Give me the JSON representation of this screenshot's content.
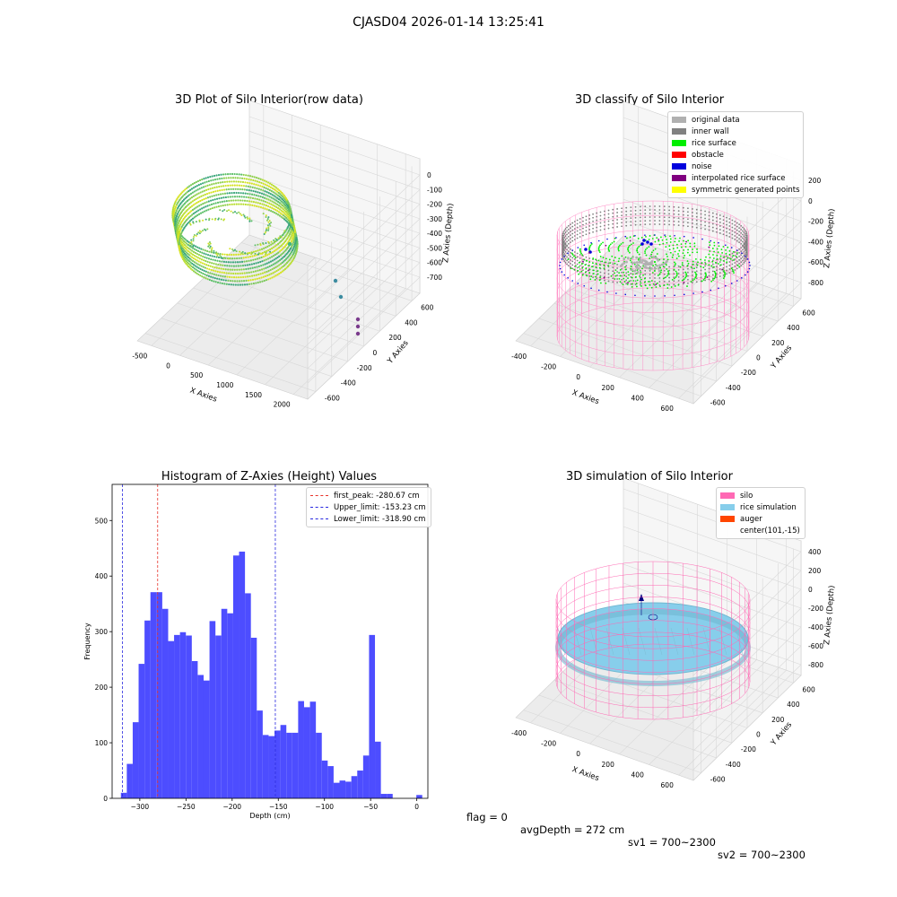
{
  "figure": {
    "suptitle": "CJASD04 2026-01-14 13:25:41",
    "footer": {
      "flag": "flag = 0",
      "avg_depth": "avgDepth = 272 cm",
      "sv1": "sv1 = 700~2300",
      "sv2": "sv2 = 700~2300"
    }
  },
  "chart_data": [
    {
      "type": "scatter",
      "panel": "top-left",
      "projection": "3d",
      "title": "3D Plot of Silo Interior(row data)",
      "xlabel": "X Axies",
      "ylabel": "Y Axies",
      "zlabel": "Z Axies (Depth)",
      "x_ticks": [
        "-500",
        "0",
        "500",
        "1000",
        "1500",
        "2000"
      ],
      "y_ticks": [
        "-600",
        "-400",
        "-200",
        "0",
        "200",
        "400",
        "600"
      ],
      "z_ticks": [
        "0",
        "-100",
        "-200",
        "-300",
        "-400",
        "-500",
        "-600",
        "-700"
      ],
      "colormap": "viridis",
      "outliers": [
        {
          "x": 1450,
          "y": 600,
          "z": -60
        },
        {
          "x": 1700,
          "y": 500,
          "z": -600
        },
        {
          "x": 1750,
          "y": 500,
          "z": -640
        },
        {
          "x": 2000,
          "y": -100,
          "z": -690
        },
        {
          "x": 2050,
          "y": -150,
          "z": -700
        },
        {
          "x": 2050,
          "y": -200,
          "z": -700
        }
      ]
    },
    {
      "type": "scatter",
      "panel": "top-right",
      "projection": "3d",
      "title": "3D classify of Silo Interior",
      "xlabel": "X Axies",
      "ylabel": "Y Axies",
      "zlabel": "Z Axies (Depth)",
      "x_ticks": [
        "-400",
        "-200",
        "0",
        "200",
        "400",
        "600"
      ],
      "y_ticks": [
        "-600",
        "-400",
        "-200",
        "0",
        "200",
        "400",
        "600"
      ],
      "z_ticks": [
        "200",
        "0",
        "-200",
        "-400",
        "-600",
        "-800"
      ],
      "legend": {
        "position": "top-right",
        "entries": [
          {
            "label": "original data",
            "color": "#b0b0b0"
          },
          {
            "label": "inner wall",
            "color": "#808080"
          },
          {
            "label": "rice surface",
            "color": "#00ee00"
          },
          {
            "label": "obstacle",
            "color": "#ff0000"
          },
          {
            "label": "noise",
            "color": "#0000dd"
          },
          {
            "label": "interpolated rice surface",
            "color": "#800080"
          },
          {
            "label": "symmetric generated points",
            "color": "#ffff00"
          }
        ]
      },
      "silo_wireframe_color": "#ff8cc6"
    },
    {
      "type": "bar",
      "panel": "bottom-left",
      "title": "Histogram of Z-Axies (Height) Values",
      "xlabel": "Depth (cm)",
      "ylabel": "Frequency",
      "xlim": [
        -330,
        12
      ],
      "ylim": [
        0,
        565
      ],
      "x_ticks": [
        -300,
        -250,
        -200,
        -150,
        -100,
        -50,
        0
      ],
      "y_ticks": [
        0,
        100,
        200,
        300,
        400,
        500
      ],
      "bar_color": "#4d4dff",
      "bin_edges": [
        -320.5,
        -314.1,
        -307.7,
        -301.3,
        -294.9,
        -288.5,
        -282.1,
        -275.7,
        -269.3,
        -262.9,
        -256.5,
        -250.1,
        -243.7,
        -237.3,
        -230.9,
        -224.5,
        -218.1,
        -211.7,
        -205.3,
        -198.9,
        -192.5,
        -186.1,
        -179.7,
        -173.3,
        -166.9,
        -160.5,
        -154.1,
        -147.7,
        -141.3,
        -134.9,
        -128.5,
        -122.1,
        -115.7,
        -109.3,
        -102.9,
        -96.5,
        -90.1,
        -83.7,
        -77.3,
        -70.9,
        -64.5,
        -58.1,
        -51.7,
        -45.3,
        -38.9,
        -32.5,
        -26.1,
        -19.7,
        -13.3,
        -6.9,
        -0.5,
        5.9
      ],
      "values": [
        10,
        62,
        137,
        242,
        320,
        371,
        371,
        341,
        283,
        294,
        299,
        293,
        247,
        222,
        212,
        319,
        293,
        341,
        333,
        437,
        444,
        369,
        289,
        158,
        114,
        112,
        122,
        132,
        118,
        118,
        175,
        164,
        174,
        118,
        68,
        58,
        28,
        32,
        30,
        40,
        50,
        77,
        294,
        102,
        8,
        8,
        0,
        0,
        0,
        0,
        6
      ],
      "reference_lines": [
        {
          "label": "first_peak: -280.67 cm",
          "x": -280.67,
          "color": "#e8332a"
        },
        {
          "label": "Upper_limit: -153.23 cm",
          "x": -153.23,
          "color": "#2828e0"
        },
        {
          "label": "Lower_limit: -318.90 cm",
          "x": -318.9,
          "color": "#2828e0"
        }
      ],
      "legend": {
        "position": "top-right"
      }
    },
    {
      "type": "scatter",
      "panel": "bottom-right",
      "projection": "3d",
      "title": "3D simulation of Silo Interior",
      "xlabel": "X Axies",
      "ylabel": "Y Axies",
      "zlabel": "Z Axies (Depth)",
      "x_ticks": [
        "-400",
        "-200",
        "0",
        "200",
        "400",
        "600"
      ],
      "y_ticks": [
        "-600",
        "-400",
        "-200",
        "0",
        "200",
        "400",
        "600"
      ],
      "z_ticks": [
        "400",
        "200",
        "0",
        "-200",
        "-400",
        "-600",
        "-800"
      ],
      "legend": {
        "position": "top-right",
        "entries": [
          {
            "label": "silo",
            "color": "#ff69b4"
          },
          {
            "label": "rice simulation",
            "color": "#87ceeb"
          },
          {
            "label": "auger",
            "color": "#ff4500"
          },
          {
            "label": "center(101,-15)",
            "color": ""
          }
        ]
      },
      "center": {
        "x": 101,
        "y": -15
      }
    }
  ]
}
